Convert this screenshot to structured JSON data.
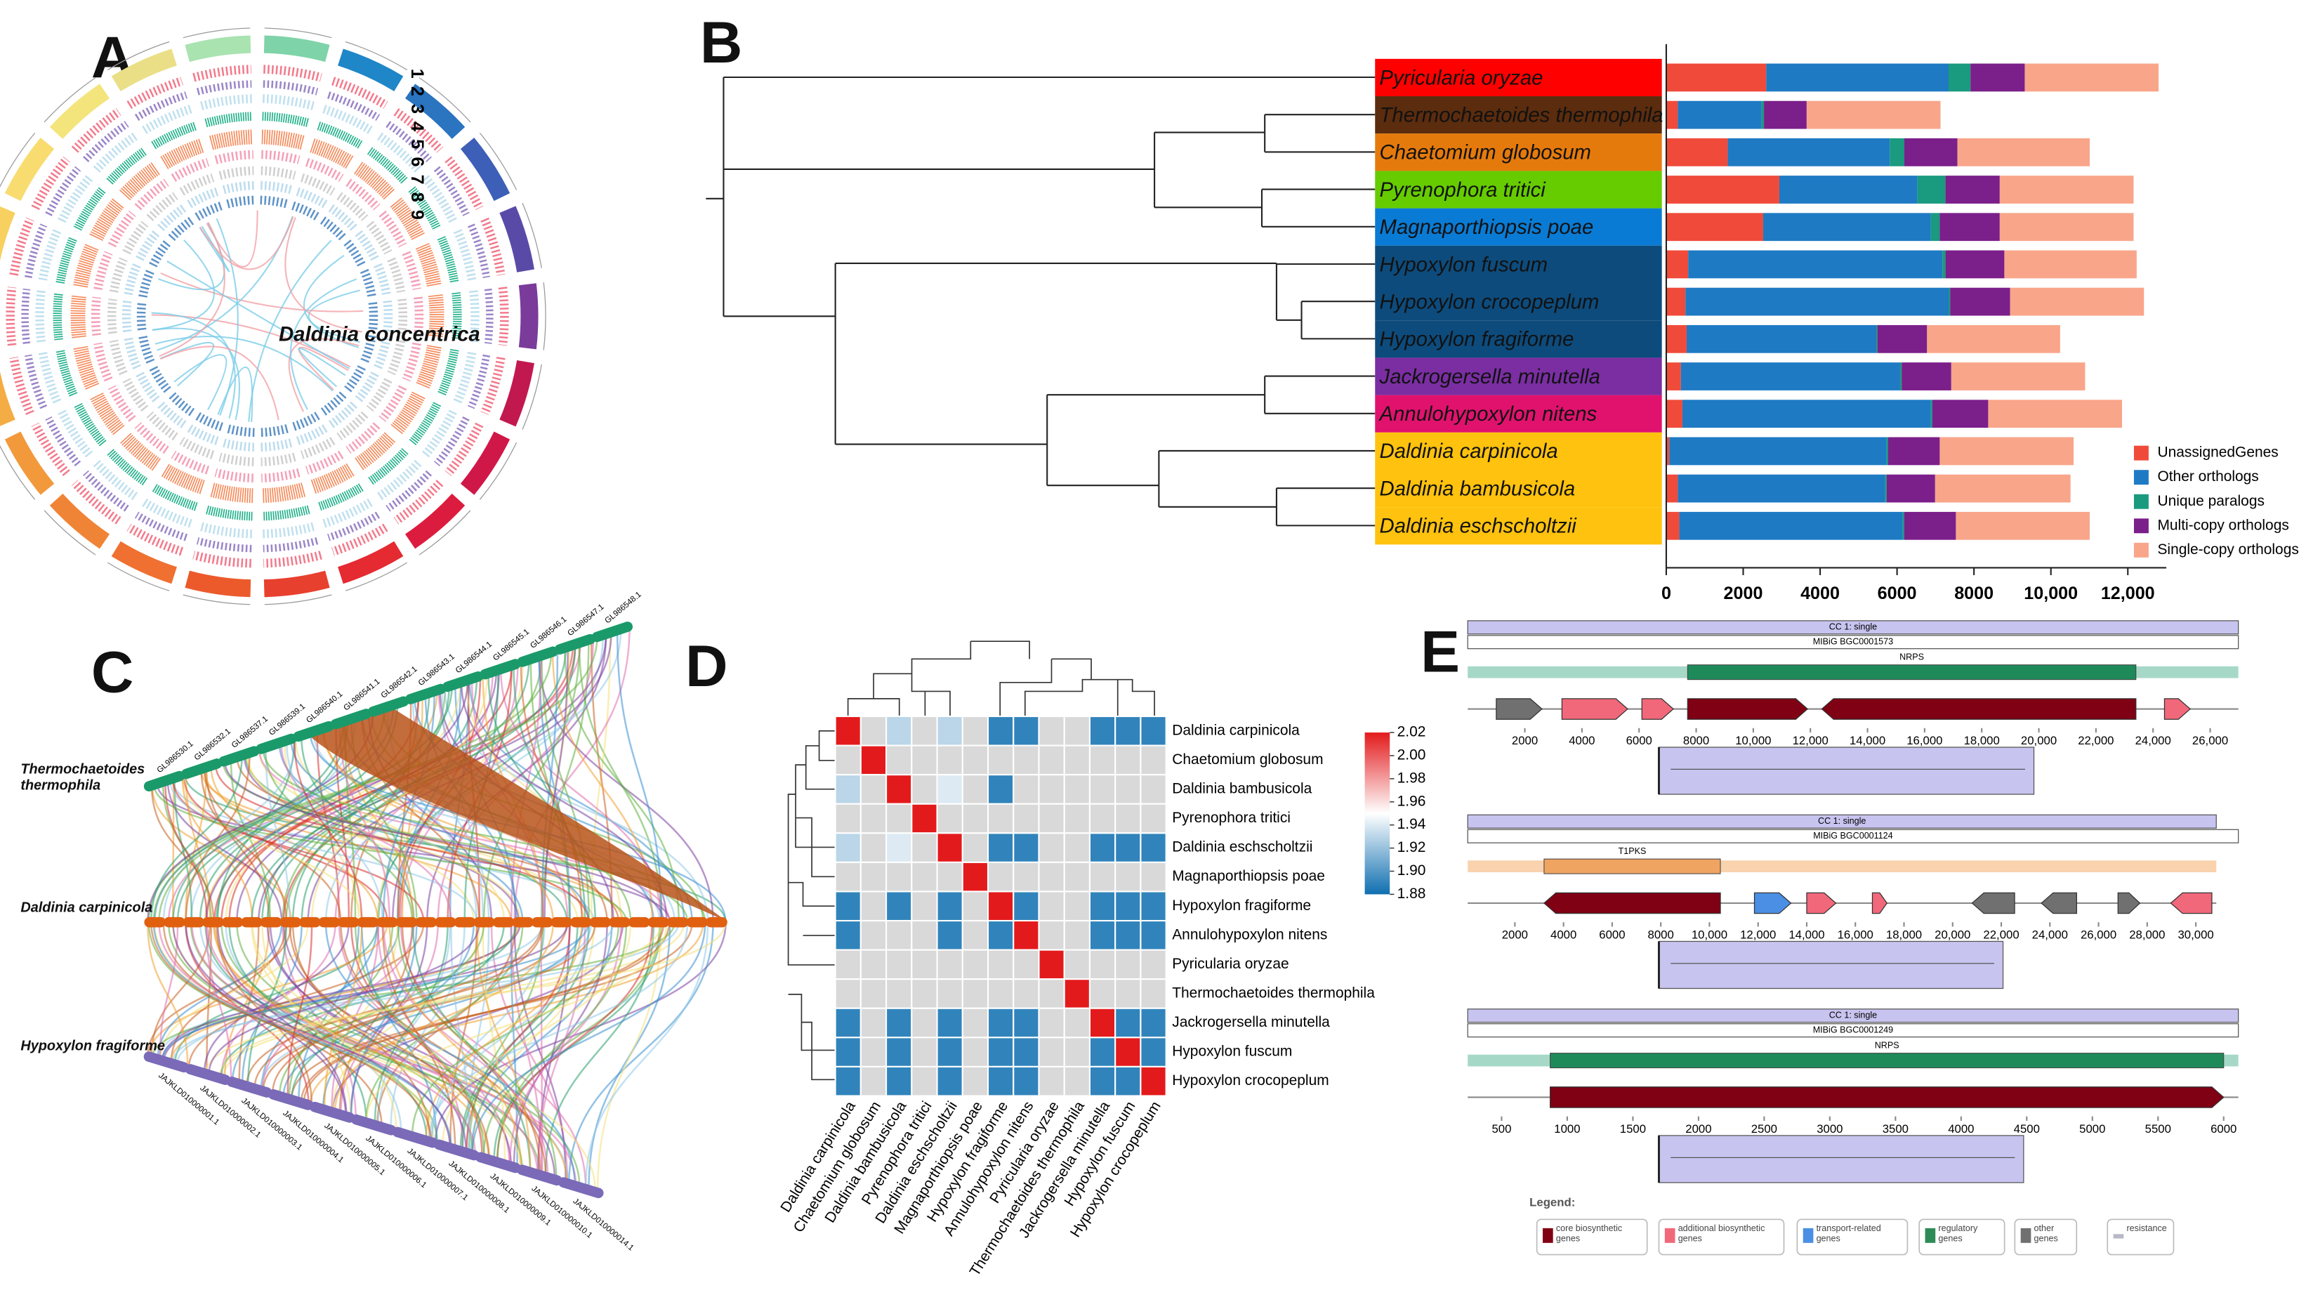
{
  "panels": {
    "a": "A",
    "b": "B",
    "c": "C",
    "d": "D",
    "e": "E"
  },
  "circos": {
    "title": "Daldinia concentrica",
    "tracks": [
      "1",
      "2",
      "3",
      "4",
      "5",
      "6",
      "7",
      "8",
      "9"
    ]
  },
  "synteny": {
    "genomes": [
      "Thermochaetoides thermophila",
      "Daldinia carpinicola",
      "Hypoxylon fragiforme"
    ],
    "top_contigs": [
      "GL986530.1",
      "GL986532.1",
      "GL986537.1",
      "GL986539.1",
      "GL986540.1",
      "GL986541.1",
      "GL986542.1",
      "GL986543.1",
      "GL986544.1",
      "GL986545.1",
      "GL986546.1",
      "GL986547.1",
      "GL986548.1"
    ],
    "bottom_contigs": [
      "JAJKLD010000001.1",
      "JAJKLD010000002.1",
      "JAJKLD010000003.1",
      "JAJKLD010000004.1",
      "JAJKLD010000005.1",
      "JAJKLD010000006.1",
      "JAJKLD010000007.1",
      "JAJKLD010000008.1",
      "JAJKLD010000009.1",
      "JAJKLD010000010.1",
      "JAJKLD010000014.1"
    ]
  },
  "chart_data": [
    {
      "type": "stacked_barh",
      "categories": [
        "Pyricularia oryzae",
        "Thermochaetoides thermophila",
        "Chaetomium globosum",
        "Pyrenophora tritici",
        "Magnaporthiopsis poae",
        "Hypoxylon fuscum",
        "Hypoxylon crocopeplum",
        "Hypoxylon fragiforme",
        "Jackrogersella minutella",
        "Annulohypoxylon nitens",
        "Daldinia carpinicola",
        "Daldinia bambusicola",
        "Daldinia eschscholtzii"
      ],
      "category_colors": [
        "#ff0000",
        "#5b2c0e",
        "#e57a0c",
        "#66cc00",
        "#0a7bd4",
        "#0d4b7c",
        "#0d4b7c",
        "#0d4b7c",
        "#7a2ea2",
        "#e0126e",
        "#ffc20e",
        "#ffc20e",
        "#ffc20e"
      ],
      "series": [
        {
          "name": "UnassignedGenes",
          "color": "#f04b3a",
          "values": [
            2600,
            300,
            1600,
            2940,
            2520,
            570,
            500,
            530,
            380,
            420,
            80,
            300,
            340
          ]
        },
        {
          "name": "Other orthologs",
          "color": "#1f7ac4",
          "values": [
            4740,
            2180,
            4210,
            3590,
            4360,
            6610,
            6840,
            4930,
            5700,
            6460,
            5650,
            5390,
            5810
          ]
        },
        {
          "name": "Unique paralogs",
          "color": "#1a9a7e",
          "values": [
            570,
            60,
            380,
            730,
            230,
            80,
            40,
            30,
            40,
            40,
            40,
            40,
            40
          ]
        },
        {
          "name": "Multi-copy orthologs",
          "color": "#7b1f8a",
          "values": [
            1410,
            1110,
            1380,
            1410,
            1560,
            1530,
            1560,
            1290,
            1290,
            1450,
            1340,
            1260,
            1340
          ]
        },
        {
          "name": "Single-copy orthologs",
          "color": "#f9a58a",
          "values": [
            3480,
            3480,
            3440,
            3480,
            3480,
            3440,
            3480,
            3460,
            3480,
            3480,
            3480,
            3520,
            3480
          ]
        }
      ],
      "xlim": [
        0,
        13000
      ],
      "xticks": [
        0,
        2000,
        4000,
        6000,
        8000,
        {
          "value": 10000,
          "label": "10,000"
        },
        {
          "value": 12000,
          "label": "12,000"
        }
      ]
    },
    {
      "type": "heatmap",
      "rows": [
        "Daldinia carpinicola",
        "Chaetomium globosum",
        "Daldinia bambusicola",
        "Pyrenophora tritici",
        "Daldinia eschscholtzii",
        "Magnaporthiopsis poae",
        "Hypoxylon fragiforme",
        "Annulohypoxylon nitens",
        "Pyricularia oryzae",
        "Thermochaetoides thermophila",
        "Jackrogersella minutella",
        "Hypoxylon fuscum",
        "Hypoxylon crocopeplum"
      ],
      "columns": [
        "Daldinia carpinicola",
        "Chaetomium globosum",
        "Daldinia bambusicola",
        "Pyrenophora tritici",
        "Daldinia eschscholtzii",
        "Magnaporthiopsis poae",
        "Hypoxylon fragiforme",
        "Annulohypoxylon nitens",
        "Pyricularia oryzae",
        "Thermochaetoides thermophila",
        "Jackrogersella minutella",
        "Hypoxylon fuscum",
        "Hypoxylon crocopeplum"
      ],
      "values": [
        [
          2.02,
          null,
          1.93,
          null,
          1.93,
          null,
          1.89,
          1.89,
          null,
          null,
          1.89,
          1.89,
          1.89
        ],
        [
          null,
          2.02,
          null,
          null,
          null,
          null,
          null,
          null,
          null,
          null,
          null,
          null,
          null
        ],
        [
          1.93,
          null,
          2.02,
          null,
          1.94,
          null,
          1.89,
          null,
          null,
          null,
          null,
          null,
          null
        ],
        [
          null,
          null,
          null,
          2.02,
          null,
          null,
          null,
          null,
          null,
          null,
          null,
          null,
          null
        ],
        [
          1.93,
          null,
          1.94,
          null,
          2.02,
          null,
          1.89,
          1.89,
          null,
          null,
          1.89,
          1.89,
          1.89
        ],
        [
          null,
          null,
          null,
          null,
          null,
          2.02,
          null,
          null,
          null,
          null,
          null,
          null,
          null
        ],
        [
          1.89,
          null,
          1.89,
          null,
          1.89,
          null,
          2.02,
          1.89,
          null,
          null,
          1.89,
          1.89,
          1.89
        ],
        [
          1.89,
          null,
          null,
          null,
          1.89,
          null,
          1.89,
          2.02,
          null,
          null,
          1.89,
          1.89,
          1.89
        ],
        [
          null,
          null,
          null,
          null,
          null,
          null,
          null,
          null,
          2.02,
          null,
          null,
          null,
          null
        ],
        [
          null,
          null,
          null,
          null,
          null,
          null,
          null,
          null,
          null,
          2.02,
          null,
          null,
          null
        ],
        [
          1.89,
          null,
          1.89,
          null,
          1.89,
          null,
          1.89,
          1.89,
          null,
          null,
          2.02,
          1.89,
          1.89
        ],
        [
          1.89,
          null,
          1.89,
          null,
          1.89,
          null,
          1.89,
          1.89,
          null,
          null,
          1.89,
          2.02,
          1.89
        ],
        [
          1.89,
          null,
          1.89,
          null,
          1.89,
          null,
          1.89,
          1.89,
          null,
          null,
          1.89,
          1.89,
          2.02
        ]
      ],
      "zlim": [
        1.88,
        2.02
      ],
      "zticks": [
        2.02,
        {
          "value": 2,
          "label": "2.00"
        },
        1.98,
        1.96,
        1.94,
        1.92,
        {
          "value": 1.9,
          "label": "1.90"
        },
        1.88
      ],
      "colors": [
        "#0f6fb0",
        "#ffffff",
        "#e31a1c"
      ],
      "na_color": "#d9d9d9"
    }
  ],
  "gene_clusters": [
    {
      "header": "CC 1: single",
      "reference": "MIBiG BGC0001573",
      "region": "NRPS",
      "region_range": [
        7700,
        23400
      ],
      "xlim": [
        0,
        27000
      ],
      "xticks": [
        2000,
        4000,
        6000,
        8000,
        {
          "value": 10000,
          "label": "10,000"
        },
        {
          "value": 12000,
          "label": "12,000"
        },
        {
          "value": 14000,
          "label": "14,000"
        },
        {
          "value": 16000,
          "label": "16,000"
        },
        {
          "value": 18000,
          "label": "18,000"
        },
        {
          "value": 20000,
          "label": "20,000"
        },
        {
          "value": 22000,
          "label": "22,000"
        },
        {
          "value": 24000,
          "label": "24,000"
        },
        {
          "value": 26000,
          "label": "26,000"
        }
      ],
      "genes": [
        {
          "start": 1000,
          "end": 2600,
          "strand": 1,
          "type": "other"
        },
        {
          "start": 3300,
          "end": 5600,
          "strand": 1,
          "type": "additional"
        },
        {
          "start": 6100,
          "end": 7200,
          "strand": 1,
          "type": "additional"
        },
        {
          "start": 7700,
          "end": 11900,
          "strand": 1,
          "type": "core"
        },
        {
          "start": 12400,
          "end": 23400,
          "strand": -1,
          "type": "core"
        },
        {
          "start": 24400,
          "end": 25300,
          "strand": 1,
          "type": "additional"
        }
      ]
    },
    {
      "header": "CC 1: single",
      "reference": "MIBiG BGC0001124",
      "region": "T1PKS",
      "region_range": [
        3200,
        10450
      ],
      "xlim": [
        0,
        31000
      ],
      "xticks": [
        2000,
        4000,
        6000,
        8000,
        {
          "value": 10000,
          "label": "10,000"
        },
        {
          "value": 12000,
          "label": "12,000"
        },
        {
          "value": 14000,
          "label": "14,000"
        },
        {
          "value": 16000,
          "label": "16,000"
        },
        {
          "value": 18000,
          "label": "18,000"
        },
        {
          "value": 20000,
          "label": "20,000"
        },
        {
          "value": 22000,
          "label": "22,000"
        },
        {
          "value": 24000,
          "label": "24,000"
        },
        {
          "value": 26000,
          "label": "26,000"
        },
        {
          "value": 28000,
          "label": "28,000"
        },
        {
          "value": 30000,
          "label": "30,000"
        }
      ],
      "genes": [
        {
          "start": 3200,
          "end": 10450,
          "strand": -1,
          "type": "core"
        },
        {
          "start": 11850,
          "end": 13350,
          "strand": 1,
          "type": "transport"
        },
        {
          "start": 14000,
          "end": 15200,
          "strand": 1,
          "type": "additional"
        },
        {
          "start": 16700,
          "end": 17300,
          "strand": 1,
          "type": "additional"
        },
        {
          "start": 20800,
          "end": 22550,
          "strand": -1,
          "type": "other"
        },
        {
          "start": 23650,
          "end": 25100,
          "strand": -1,
          "type": "other"
        },
        {
          "start": 26800,
          "end": 27700,
          "strand": 1,
          "type": "other"
        },
        {
          "start": 28970,
          "end": 30660,
          "strand": -1,
          "type": "additional"
        }
      ]
    },
    {
      "header": "CC 1: single",
      "reference": "MIBiG BGC0001249",
      "region": "NRPS",
      "region_range": [
        870,
        6000
      ],
      "xlim": [
        0,
        6100
      ],
      "xticks": [
        500,
        1000,
        1500,
        2000,
        2500,
        3000,
        3500,
        4000,
        4500,
        5000,
        5500,
        6000
      ],
      "genes": [
        {
          "start": 870,
          "end": 6000,
          "strand": 1,
          "type": "core"
        }
      ]
    }
  ],
  "gene_legend": {
    "title": "Legend:",
    "items": [
      {
        "type": "core",
        "label": "core biosynthetic genes",
        "color": "#800014"
      },
      {
        "type": "additional",
        "label": "additional biosynthetic genes",
        "color": "#f1687a"
      },
      {
        "type": "transport",
        "label": "transport-related genes",
        "color": "#4a8fe4"
      },
      {
        "type": "regulatory",
        "label": "regulatory genes",
        "color": "#2e8b57"
      },
      {
        "type": "other",
        "label": "other genes",
        "color": "#707070"
      },
      {
        "type": "resistance",
        "label": "resistance",
        "color": "#b8b8c8"
      }
    ]
  }
}
